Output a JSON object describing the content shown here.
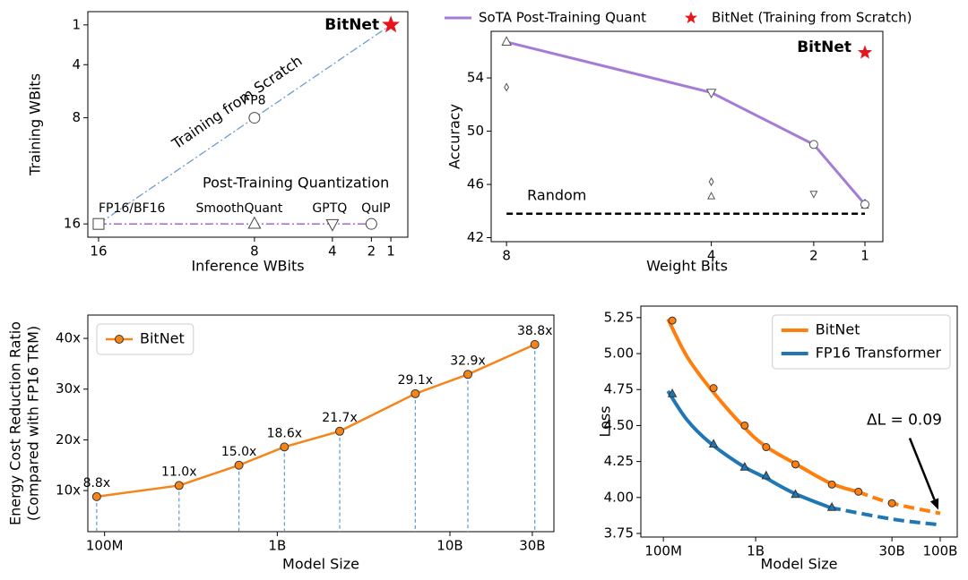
{
  "chart_data": [
    {
      "type": "line",
      "xlabel": "Inference WBits",
      "ylabel": "Training WBits",
      "legend": "inline",
      "xlim": [
        16.55,
        0.13
      ],
      "ylim": [
        17,
        0
      ],
      "xticks": [
        16,
        8,
        4,
        2,
        1
      ],
      "yticks": [
        1,
        4,
        8,
        16
      ],
      "series": [
        {
          "name": "Training from Scratch",
          "color": "#6b9bd1",
          "dash": "dashdot",
          "x": [
            16,
            1
          ],
          "values": [
            16,
            1
          ]
        },
        {
          "name": "Post-Training Quantization",
          "color": "#9b59d6",
          "dash": "dashdot",
          "x": [
            16,
            2
          ],
          "values": [
            16,
            16
          ]
        }
      ],
      "points": [
        {
          "label": "FP16/BF16",
          "x": 16,
          "y": 16,
          "marker": "square"
        },
        {
          "label": "SmoothQuant",
          "x": 8,
          "y": 16,
          "marker": "triangle"
        },
        {
          "label": "GPTQ",
          "x": 4,
          "y": 16,
          "marker": "triangle-down"
        },
        {
          "label": "QuIP",
          "x": 2,
          "y": 16,
          "marker": "circle"
        },
        {
          "label": "FP8",
          "x": 8,
          "y": 8,
          "marker": "circle"
        },
        {
          "label": "BitNet",
          "x": 1,
          "y": 1,
          "marker": "star",
          "color": "#e8141b"
        }
      ]
    },
    {
      "type": "line",
      "xlabel": "Weight Bits",
      "ylabel": "Accuracy",
      "legend": "above",
      "xlim": [
        8.3,
        0.65
      ],
      "ylim": [
        41.7,
        57.5
      ],
      "xticks": [
        8,
        4,
        2,
        1
      ],
      "yticks": [
        42,
        46,
        50,
        54
      ],
      "series": [
        {
          "name": "SoTA Post-Training Quant",
          "color": "#a47bd6",
          "x": [
            8,
            4,
            2,
            1
          ],
          "values": [
            56.7,
            52.9,
            49.0,
            44.5
          ],
          "markers": [
            "triangle",
            "triangle-down",
            "circle",
            "circle"
          ]
        },
        {
          "name": "BitNet (Training from Scratch)",
          "color": "#e8141b",
          "marker": "star",
          "x": [
            1
          ],
          "values": [
            55.9
          ],
          "point_labels": [
            "BitNet"
          ]
        }
      ],
      "points": [
        {
          "x": 8,
          "y": 53.3,
          "marker": "diamond"
        },
        {
          "x": 4,
          "y": 46.2,
          "marker": "diamond"
        },
        {
          "x": 4,
          "y": 45.1,
          "marker": "triangle"
        },
        {
          "x": 2,
          "y": 45.3,
          "marker": "triangle-down"
        },
        {
          "x": 1,
          "y": 44.4,
          "marker": "triangle"
        },
        {
          "x": 1,
          "y": 44.6,
          "marker": "diamond"
        }
      ],
      "reference_lines": [
        {
          "label": "Random",
          "y": 43.8,
          "x": [
            8,
            1
          ],
          "color": "#000000",
          "dash": "dashed"
        }
      ]
    },
    {
      "type": "line",
      "xlabel": "Model Size",
      "ylabel": [
        "Energy Cost Reduction Ratio",
        "(Compared with FP16 TRM)"
      ],
      "legend": "upper left",
      "xscale": "log",
      "xlim": [
        80000000,
        40000000000
      ],
      "ylim": [
        1.9,
        44.6
      ],
      "xticks": [
        {
          "value": 100000000,
          "label": "100M"
        },
        {
          "value": 1000000000,
          "label": "1B"
        },
        {
          "value": 10000000000,
          "label": "10B"
        },
        {
          "value": 30000000000,
          "label": "30B"
        }
      ],
      "yticks": [
        {
          "value": 10,
          "label": "10x"
        },
        {
          "value": 20,
          "label": "20x"
        },
        {
          "value": 30,
          "label": "30x"
        },
        {
          "value": 40,
          "label": "40x"
        }
      ],
      "drop_lines": "#5b9bd5",
      "series": [
        {
          "name": "BitNet",
          "color": "#f58518",
          "marker": "circle",
          "x": [
            90000000,
            270000000,
            600000000,
            1100000000,
            2300000000,
            6300000000,
            12700000000,
            31000000000
          ],
          "values": [
            8.8,
            11.0,
            15.0,
            18.6,
            21.7,
            29.1,
            32.9,
            38.8
          ],
          "value_labels": [
            "8.8x",
            "11.0x",
            "15.0x",
            "18.6x",
            "21.7x",
            "29.1x",
            "32.9x",
            "38.8x"
          ]
        }
      ]
    },
    {
      "type": "line",
      "xlabel": "Model Size",
      "ylabel": "Loss",
      "legend": "upper right",
      "annotation": "ΔL = 0.09",
      "xscale": "log",
      "xlim": [
        57000000,
        153000000000
      ],
      "ylim": [
        3.725,
        5.33
      ],
      "xticks": [
        {
          "value": 100000000,
          "label": "100M"
        },
        {
          "value": 1000000000,
          "label": "1B"
        },
        {
          "value": 30000000000,
          "label": "30B"
        },
        {
          "value": 100000000000,
          "label": "100B"
        }
      ],
      "yticks": [
        3.75,
        {
          "value": 4,
          "label": "4.00"
        },
        4.25,
        {
          "value": 4.5,
          "label": "4.50"
        },
        4.75,
        {
          "value": 5,
          "label": "5.00"
        },
        5.25
      ],
      "series": [
        {
          "name": "BitNet",
          "color": "#ff7f0e",
          "marker": "circle",
          "x": [
            125000000,
            350000000,
            760000000,
            1300000000,
            2700000000,
            6700000000,
            13000000000,
            30000000000
          ],
          "values": [
            5.23,
            4.76,
            4.5,
            4.35,
            4.23,
            4.09,
            4.04,
            3.96
          ],
          "fit": {
            "x": [
              112000000,
              180000000,
              320000000,
              720000000,
              1250000000,
              2600000000,
              6400000000,
              12700000000
            ],
            "values": [
              5.24,
              4.98,
              4.76,
              4.5,
              4.36,
              4.24,
              4.1,
              4.04
            ]
          },
          "extrapolation": {
            "x": [
              12700000000,
              30000000000,
              100000000000
            ],
            "values": [
              4.04,
              3.96,
              3.89
            ]
          }
        },
        {
          "name": "FP16 Transformer",
          "color": "#1f77b4",
          "marker": "triangle",
          "x": [
            125000000,
            350000000,
            760000000,
            1300000000,
            2700000000,
            6700000000
          ],
          "values": [
            4.72,
            4.37,
            4.21,
            4.15,
            4.02,
            3.93
          ],
          "fit": {
            "x": [
              112000000,
              180000000,
              320000000,
              720000000,
              1250000000,
              2600000000,
              6400000000
            ],
            "values": [
              4.74,
              4.54,
              4.38,
              4.22,
              4.14,
              4.03,
              3.93
            ]
          },
          "extrapolation": {
            "x": [
              6400000000,
              30000000000,
              100000000000
            ],
            "values": [
              3.93,
              3.85,
              3.81
            ]
          }
        }
      ]
    }
  ]
}
